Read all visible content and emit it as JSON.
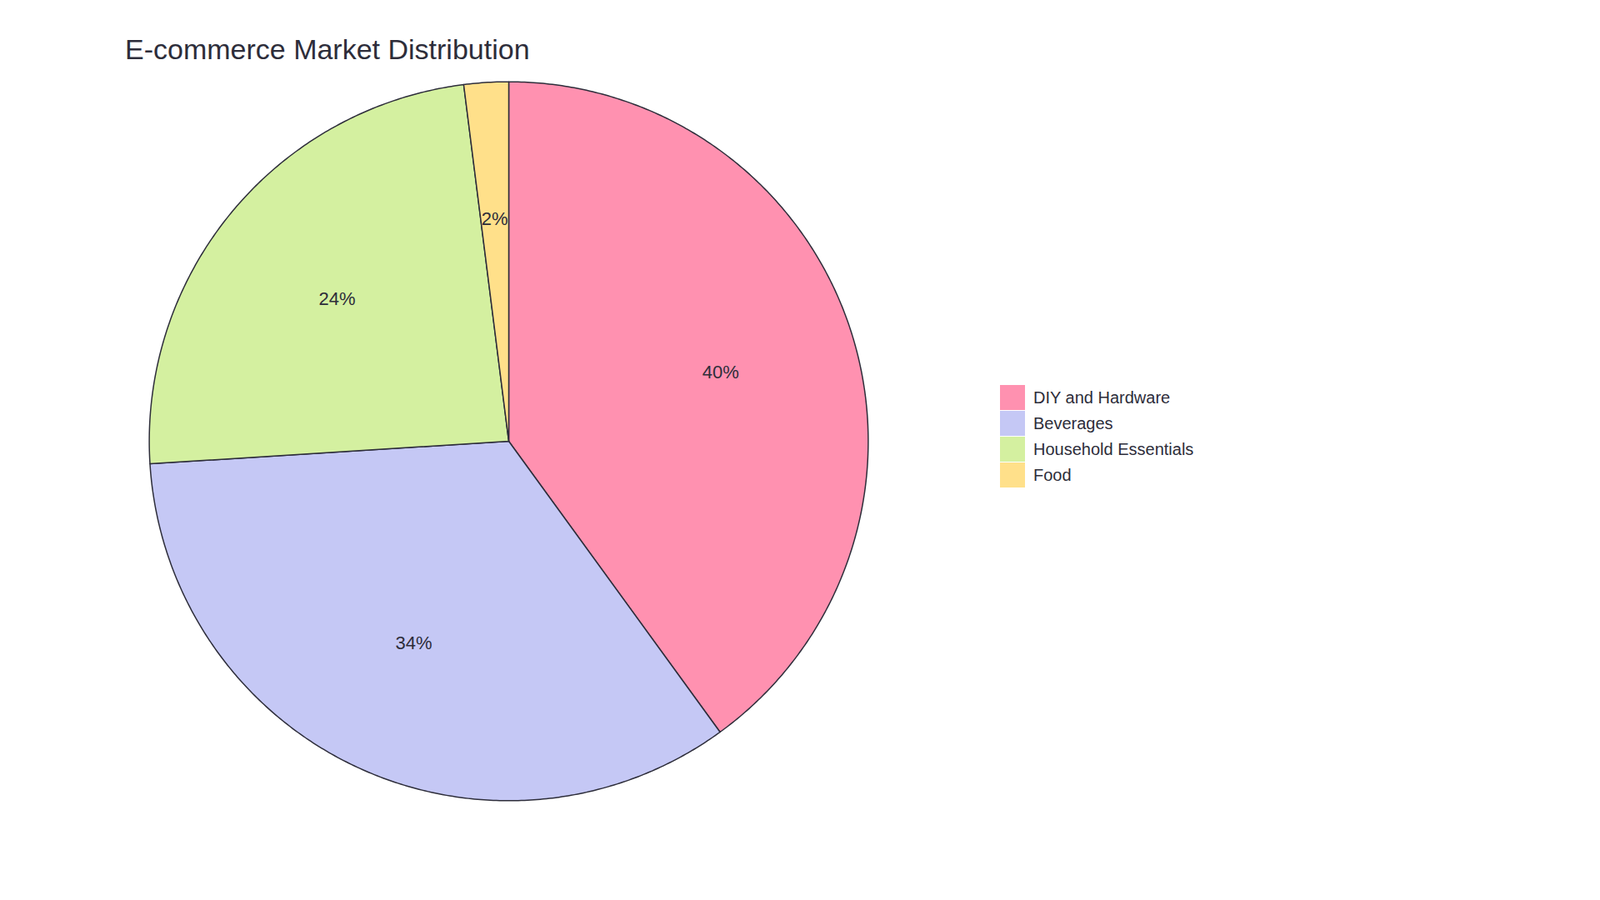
{
  "chart_data": {
    "type": "pie",
    "title": "E-commerce Market Distribution",
    "categories": [
      "DIY and Hardware",
      "Beverages",
      "Household Essentials",
      "Food"
    ],
    "values": [
      40,
      34,
      24,
      2
    ],
    "value_labels": [
      "40%",
      "34%",
      "24%",
      "2%"
    ],
    "colors": [
      "#FF91B0",
      "#C5C8F5",
      "#D4F0A0",
      "#FFE08A"
    ],
    "data_labels": true,
    "legend": "right"
  }
}
